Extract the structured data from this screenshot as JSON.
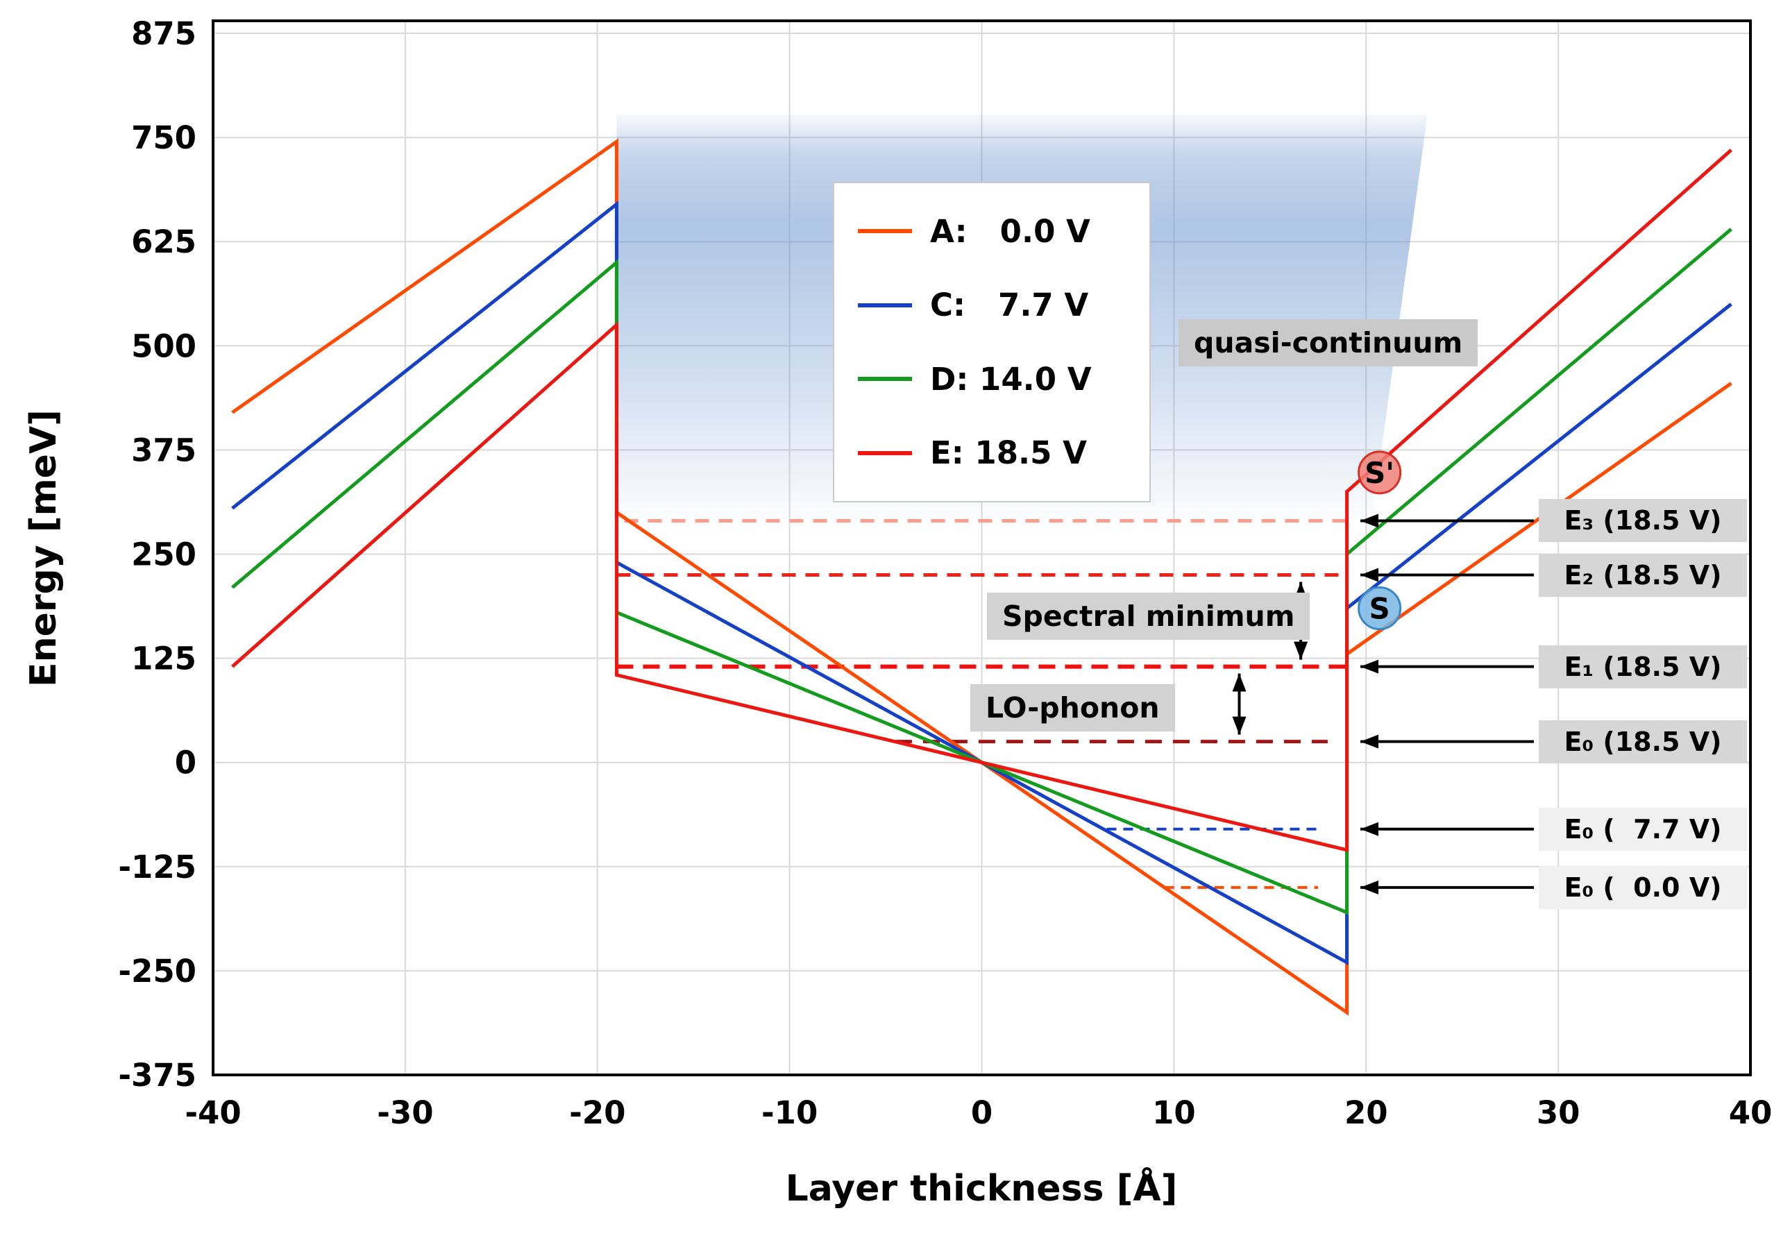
{
  "chart_data": {
    "type": "line",
    "title": "",
    "xlabel": "Layer thickness [Å]",
    "ylabel": "Energy [meV]",
    "xlim": [
      -40,
      40
    ],
    "ylim": [
      -375,
      890
    ],
    "x_ticks": [
      -40,
      -30,
      -20,
      -10,
      0,
      10,
      20,
      30,
      40
    ],
    "y_ticks": [
      875,
      750,
      625,
      500,
      375,
      250,
      125,
      0,
      -125,
      -250,
      -375
    ],
    "grid": true,
    "grid_color": "#d9d9d9",
    "legend_position": "upper center-left inside plot",
    "series": [
      {
        "name": "A",
        "legend_label": "A:   0.0 V",
        "color": "#ff4a00",
        "points": [
          [
            -39,
            420
          ],
          [
            -19,
            745
          ],
          [
            -19,
            300
          ],
          [
            19,
            -300
          ],
          [
            19,
            130
          ],
          [
            39,
            455
          ]
        ]
      },
      {
        "name": "C",
        "legend_label": "C:   7.7 V",
        "color": "#1540c8",
        "points": [
          [
            -39,
            305
          ],
          [
            -19,
            670
          ],
          [
            -19,
            240
          ],
          [
            19,
            -240
          ],
          [
            19,
            185
          ],
          [
            39,
            550
          ]
        ]
      },
      {
        "name": "D",
        "legend_label": "D: 14.0 V",
        "color": "#149c1e",
        "points": [
          [
            -39,
            210
          ],
          [
            -19,
            600
          ],
          [
            -19,
            180
          ],
          [
            19,
            -180
          ],
          [
            19,
            250
          ],
          [
            39,
            640
          ]
        ]
      },
      {
        "name": "E",
        "legend_label": "E: 18.5 V",
        "color": "#ec1711",
        "points": [
          [
            -39,
            115
          ],
          [
            -19,
            525
          ],
          [
            -19,
            105
          ],
          [
            19,
            -105
          ],
          [
            19,
            325
          ],
          [
            39,
            735
          ]
        ]
      }
    ],
    "levels": [
      {
        "label": "E₃ (18.5 V)",
        "y": 290,
        "color": "#ff9d8c",
        "x_start": -18.6,
        "x_end": 19,
        "dash": "20 14",
        "width": 5,
        "box_bg": "#d6d6d6"
      },
      {
        "label": "E₂ (18.5 V)",
        "y": 225,
        "color": "#ee2218",
        "x_start": -19,
        "x_end": 19,
        "dash": "20 14",
        "width": 5,
        "box_bg": "#d6d6d6"
      },
      {
        "label": "E₁ (18.5 V)",
        "y": 115,
        "color": "#ee1111",
        "x_start": -19,
        "x_end": 19,
        "dash": "24 14",
        "width": 6,
        "box_bg": "#d6d6d6"
      },
      {
        "label": "E₀ (18.5 V)",
        "y": 25,
        "color": "#a51414",
        "x_start": -4.5,
        "x_end": 18,
        "dash": "24 16",
        "width": 5,
        "box_bg": "#d6d6d6"
      },
      {
        "label": "E₀ (  7.7 V)",
        "y": -80,
        "color": "#1540c8",
        "x_start": 6.5,
        "x_end": 17.5,
        "dash": "14 10",
        "width": 4,
        "box_bg": "#f0f0f0"
      },
      {
        "label": "E₀ (  0.0 V)",
        "y": -150,
        "color": "#ff4a00",
        "x_start": 9.5,
        "x_end": 17.5,
        "dash": "14 10",
        "width": 4,
        "box_bg": "#f0f0f0"
      }
    ],
    "annotations": {
      "quasi_continuum": {
        "text": "quasi-continuum"
      },
      "spectral_minimum": {
        "text": "Spectral minimum",
        "arrow_x": 16.6,
        "y_top": 225,
        "y_bottom": 115
      },
      "lo_phonon": {
        "text": "LO-phonon",
        "arrow_x": 13.4,
        "y_top": 115,
        "y_bottom": 25
      },
      "s_prime": {
        "text": "S'",
        "x": 20.7,
        "y": 348,
        "fill": "#f08078",
        "stroke": "#d93025"
      },
      "s": {
        "text": "S",
        "x": 20.7,
        "y": 185,
        "fill": "#7ab6e3",
        "stroke": "#3a88c8"
      }
    },
    "continuum_region": {
      "y_bottom": 292,
      "y_top": 778,
      "x_left": -19,
      "x_right_bottom": 20.3,
      "x_right_top": 23.2,
      "color": "#6591cd"
    }
  }
}
